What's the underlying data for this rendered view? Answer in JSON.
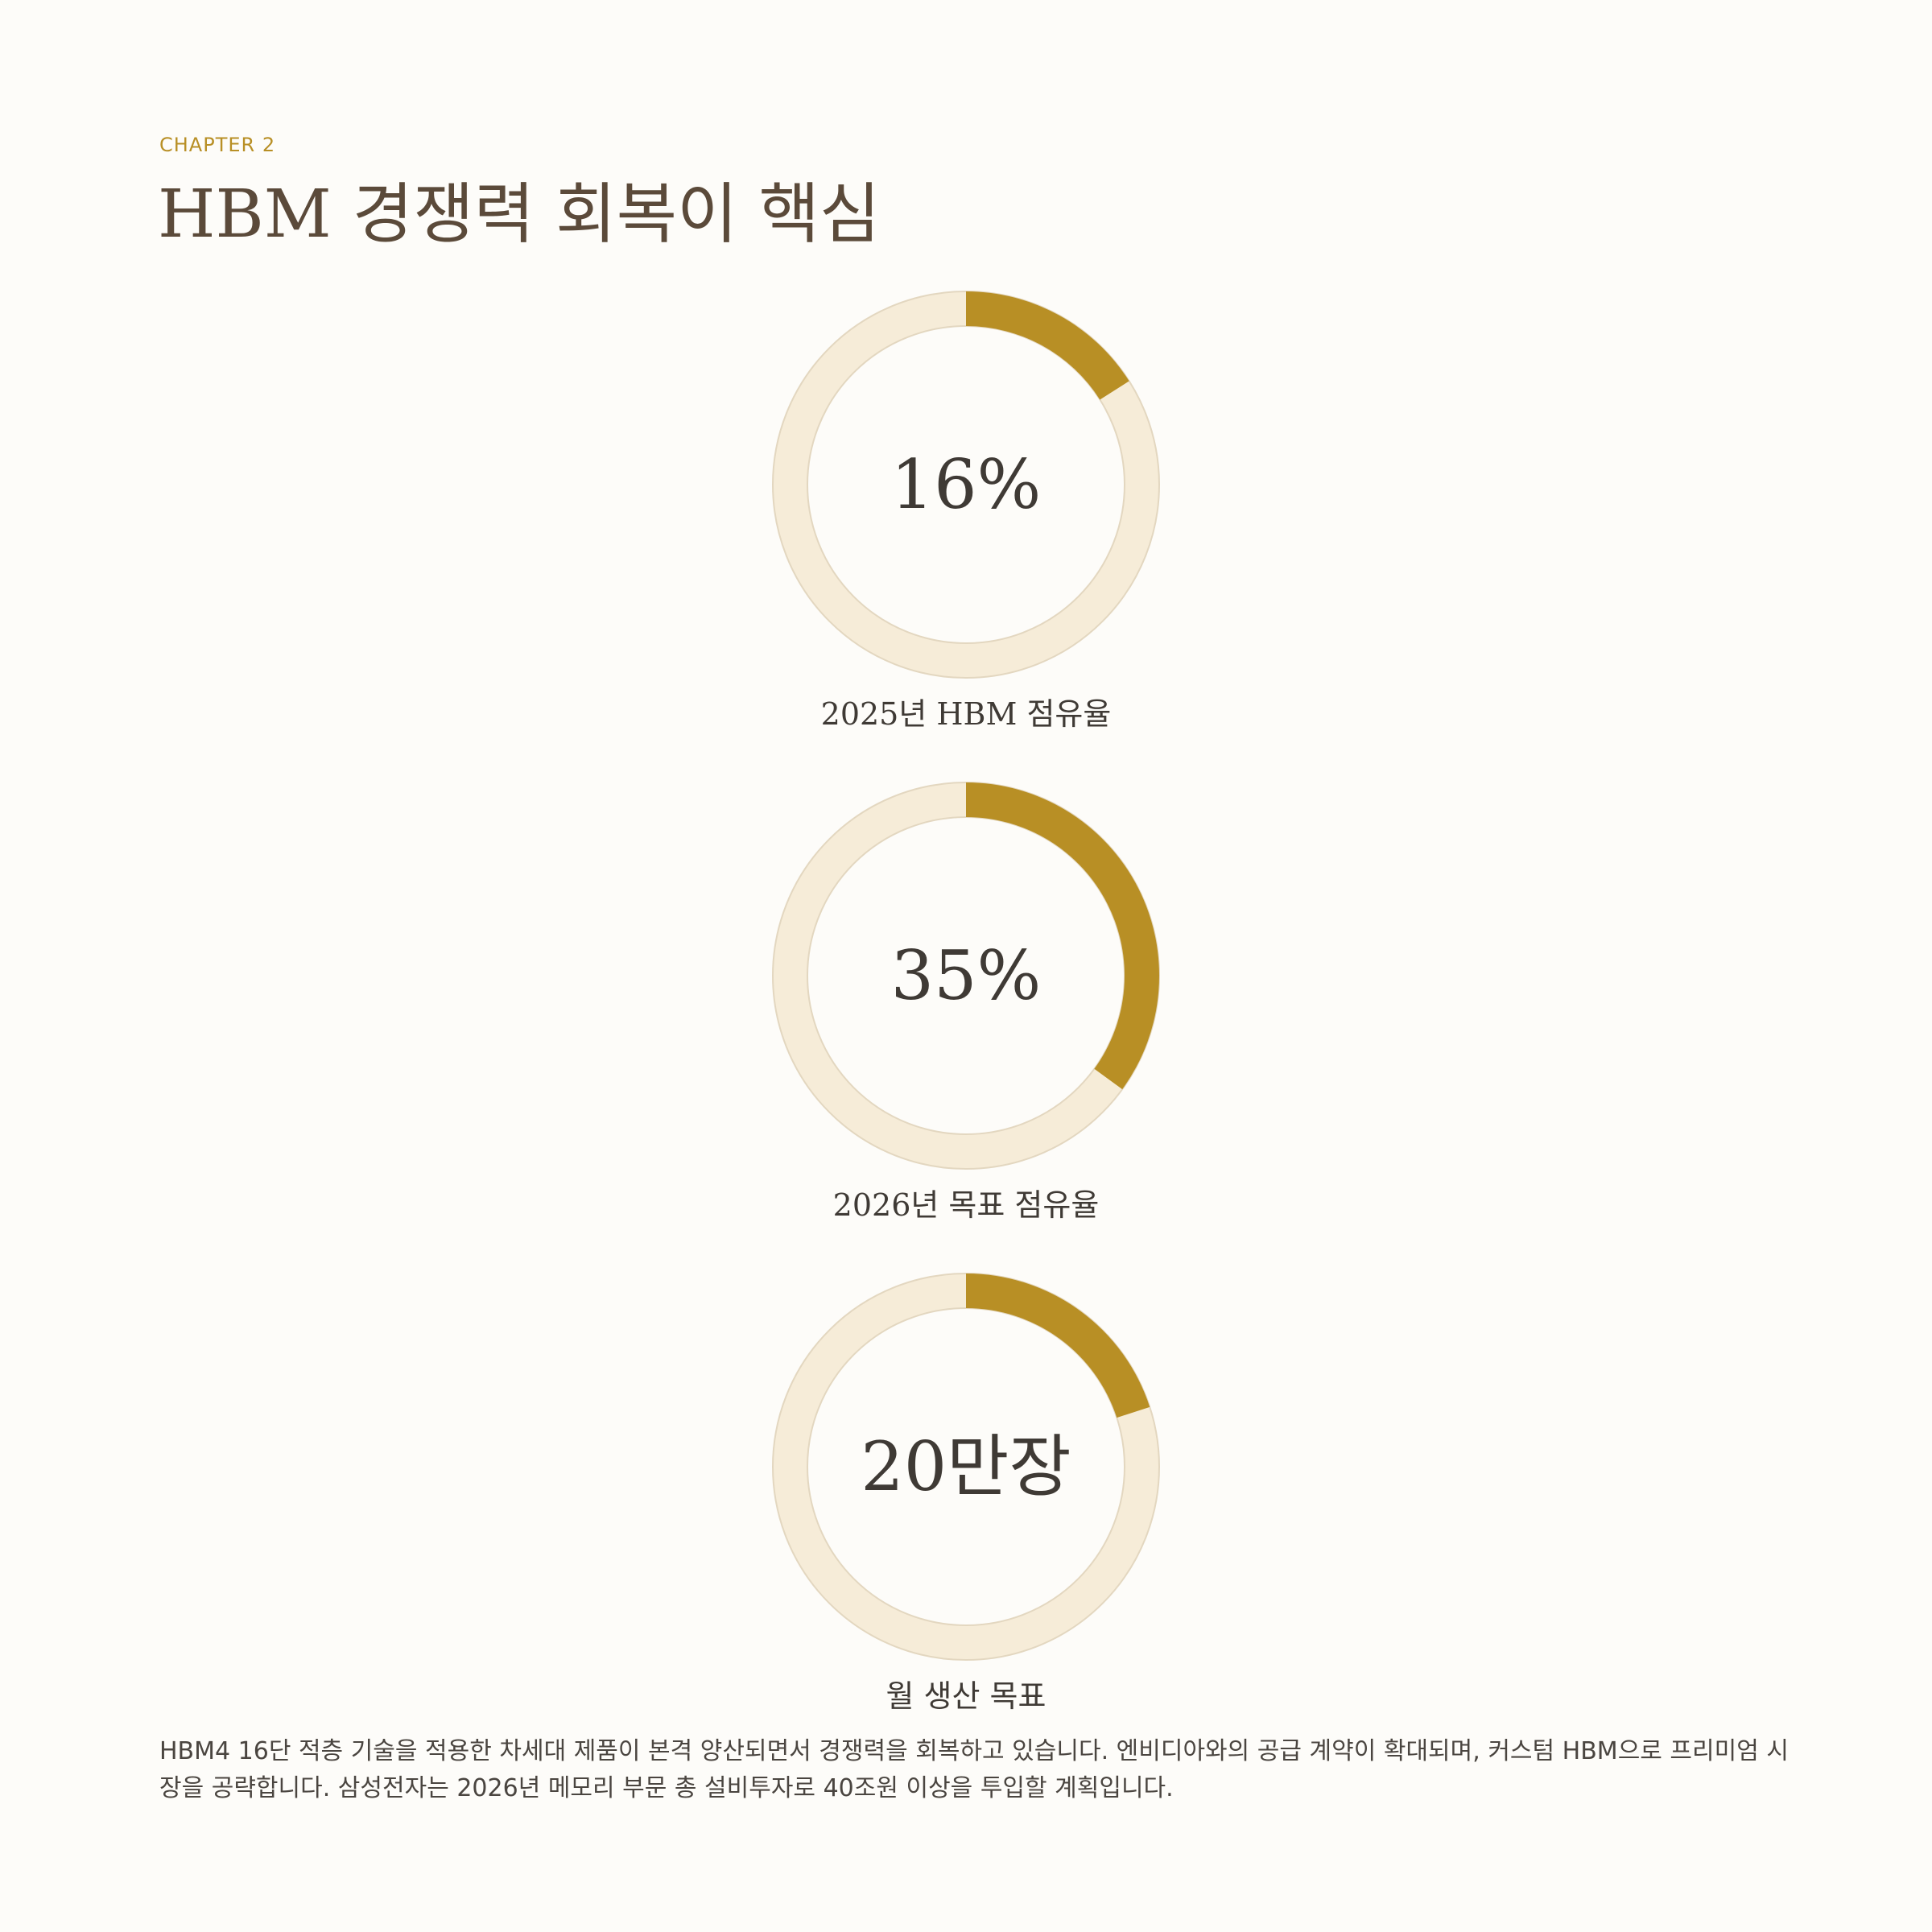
{
  "header": {
    "chapter": "CHAPTER 2",
    "title": "HBM 경쟁력 회복이 핵심"
  },
  "colors": {
    "accent": "#b88f25",
    "track": "#f6ecd8",
    "track_stroke": "#e3d7c0",
    "text": "#3f3a35",
    "background": "#fdfcf9"
  },
  "chart_data": [
    {
      "type": "pie",
      "style": "donut",
      "value": 16,
      "max": 100,
      "center_label": "16%",
      "label": "2025년 HBM 점유율"
    },
    {
      "type": "pie",
      "style": "donut",
      "value": 35,
      "max": 100,
      "center_label": "35%",
      "label": "2026년 목표 점유율"
    },
    {
      "type": "pie",
      "style": "donut",
      "value": 20,
      "max": 100,
      "center_label": "20만장",
      "label": "월 생산 목표"
    }
  ],
  "body": {
    "paragraph": "HBM4 16단 적층 기술을 적용한 차세대 제품이 본격 양산되면서 경쟁력을 회복하고 있습니다. 엔비디아와의 공급 계약이 확대되며, 커스텀 HBM으로 프리미엄 시장을 공략합니다. 삼성전자는 2026년 메모리 부문 총 설비투자로 40조원 이상을 투입할 계획입니다."
  }
}
